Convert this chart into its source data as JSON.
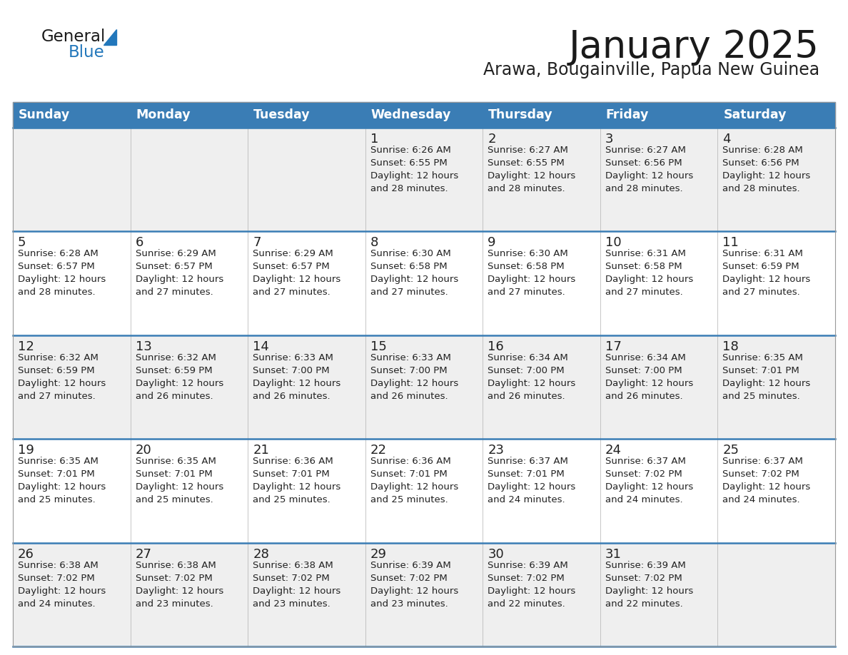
{
  "title": "January 2025",
  "subtitle": "Arawa, Bougainville, Papua New Guinea",
  "days_of_week": [
    "Sunday",
    "Monday",
    "Tuesday",
    "Wednesday",
    "Thursday",
    "Friday",
    "Saturday"
  ],
  "header_bg": "#3a7db5",
  "header_text": "#ffffff",
  "row_bg_light": "#efefef",
  "row_bg_white": "#ffffff",
  "separator_color": "#3a7db5",
  "text_color": "#222222",
  "title_color": "#1a1a1a",
  "subtitle_color": "#222222",
  "logo_black": "#1a1a1a",
  "logo_blue": "#2277bb",
  "calendar": [
    [
      null,
      null,
      null,
      {
        "day": 1,
        "sunrise": "6:26 AM",
        "sunset": "6:55 PM",
        "daylight": "12 hours\nand 28 minutes."
      },
      {
        "day": 2,
        "sunrise": "6:27 AM",
        "sunset": "6:55 PM",
        "daylight": "12 hours\nand 28 minutes."
      },
      {
        "day": 3,
        "sunrise": "6:27 AM",
        "sunset": "6:56 PM",
        "daylight": "12 hours\nand 28 minutes."
      },
      {
        "day": 4,
        "sunrise": "6:28 AM",
        "sunset": "6:56 PM",
        "daylight": "12 hours\nand 28 minutes."
      }
    ],
    [
      {
        "day": 5,
        "sunrise": "6:28 AM",
        "sunset": "6:57 PM",
        "daylight": "12 hours\nand 28 minutes."
      },
      {
        "day": 6,
        "sunrise": "6:29 AM",
        "sunset": "6:57 PM",
        "daylight": "12 hours\nand 27 minutes."
      },
      {
        "day": 7,
        "sunrise": "6:29 AM",
        "sunset": "6:57 PM",
        "daylight": "12 hours\nand 27 minutes."
      },
      {
        "day": 8,
        "sunrise": "6:30 AM",
        "sunset": "6:58 PM",
        "daylight": "12 hours\nand 27 minutes."
      },
      {
        "day": 9,
        "sunrise": "6:30 AM",
        "sunset": "6:58 PM",
        "daylight": "12 hours\nand 27 minutes."
      },
      {
        "day": 10,
        "sunrise": "6:31 AM",
        "sunset": "6:58 PM",
        "daylight": "12 hours\nand 27 minutes."
      },
      {
        "day": 11,
        "sunrise": "6:31 AM",
        "sunset": "6:59 PM",
        "daylight": "12 hours\nand 27 minutes."
      }
    ],
    [
      {
        "day": 12,
        "sunrise": "6:32 AM",
        "sunset": "6:59 PM",
        "daylight": "12 hours\nand 27 minutes."
      },
      {
        "day": 13,
        "sunrise": "6:32 AM",
        "sunset": "6:59 PM",
        "daylight": "12 hours\nand 26 minutes."
      },
      {
        "day": 14,
        "sunrise": "6:33 AM",
        "sunset": "7:00 PM",
        "daylight": "12 hours\nand 26 minutes."
      },
      {
        "day": 15,
        "sunrise": "6:33 AM",
        "sunset": "7:00 PM",
        "daylight": "12 hours\nand 26 minutes."
      },
      {
        "day": 16,
        "sunrise": "6:34 AM",
        "sunset": "7:00 PM",
        "daylight": "12 hours\nand 26 minutes."
      },
      {
        "day": 17,
        "sunrise": "6:34 AM",
        "sunset": "7:00 PM",
        "daylight": "12 hours\nand 26 minutes."
      },
      {
        "day": 18,
        "sunrise": "6:35 AM",
        "sunset": "7:01 PM",
        "daylight": "12 hours\nand 25 minutes."
      }
    ],
    [
      {
        "day": 19,
        "sunrise": "6:35 AM",
        "sunset": "7:01 PM",
        "daylight": "12 hours\nand 25 minutes."
      },
      {
        "day": 20,
        "sunrise": "6:35 AM",
        "sunset": "7:01 PM",
        "daylight": "12 hours\nand 25 minutes."
      },
      {
        "day": 21,
        "sunrise": "6:36 AM",
        "sunset": "7:01 PM",
        "daylight": "12 hours\nand 25 minutes."
      },
      {
        "day": 22,
        "sunrise": "6:36 AM",
        "sunset": "7:01 PM",
        "daylight": "12 hours\nand 25 minutes."
      },
      {
        "day": 23,
        "sunrise": "6:37 AM",
        "sunset": "7:01 PM",
        "daylight": "12 hours\nand 24 minutes."
      },
      {
        "day": 24,
        "sunrise": "6:37 AM",
        "sunset": "7:02 PM",
        "daylight": "12 hours\nand 24 minutes."
      },
      {
        "day": 25,
        "sunrise": "6:37 AM",
        "sunset": "7:02 PM",
        "daylight": "12 hours\nand 24 minutes."
      }
    ],
    [
      {
        "day": 26,
        "sunrise": "6:38 AM",
        "sunset": "7:02 PM",
        "daylight": "12 hours\nand 24 minutes."
      },
      {
        "day": 27,
        "sunrise": "6:38 AM",
        "sunset": "7:02 PM",
        "daylight": "12 hours\nand 23 minutes."
      },
      {
        "day": 28,
        "sunrise": "6:38 AM",
        "sunset": "7:02 PM",
        "daylight": "12 hours\nand 23 minutes."
      },
      {
        "day": 29,
        "sunrise": "6:39 AM",
        "sunset": "7:02 PM",
        "daylight": "12 hours\nand 23 minutes."
      },
      {
        "day": 30,
        "sunrise": "6:39 AM",
        "sunset": "7:02 PM",
        "daylight": "12 hours\nand 22 minutes."
      },
      {
        "day": 31,
        "sunrise": "6:39 AM",
        "sunset": "7:02 PM",
        "daylight": "12 hours\nand 22 minutes."
      },
      null
    ]
  ]
}
